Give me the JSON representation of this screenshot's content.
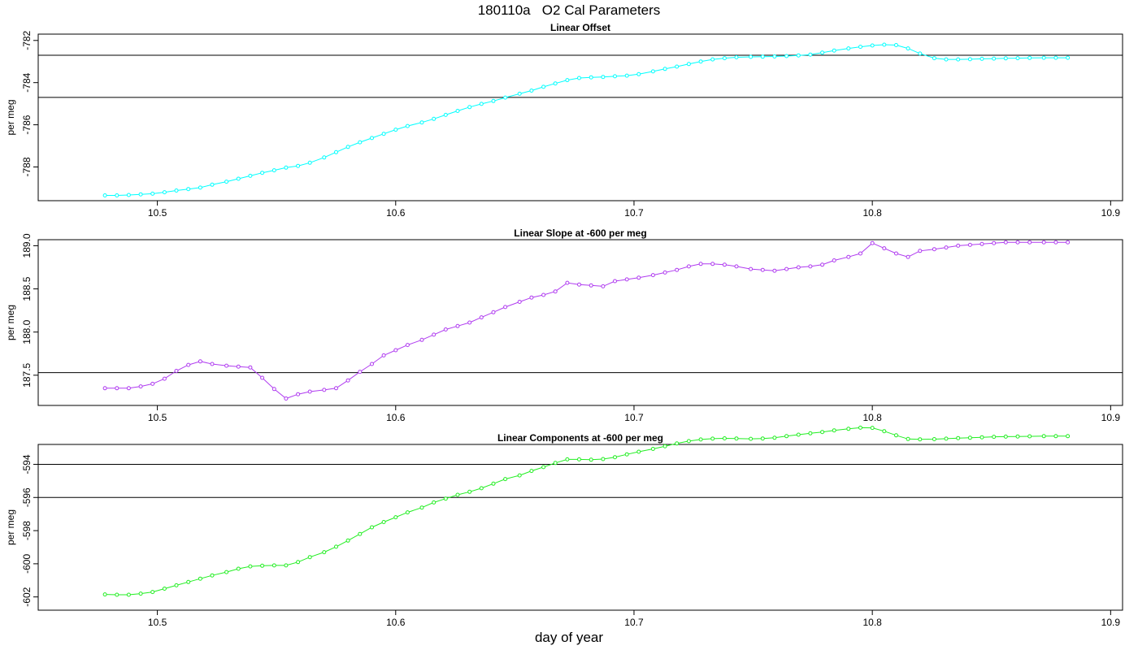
{
  "title": "180110a   O2 Cal Parameters",
  "xlabel": "day of year",
  "chart_data": [
    {
      "type": "line",
      "title": "Linear Offset",
      "ylabel": "per meg",
      "color": "#00ffff",
      "xlim": [
        10.45,
        10.905
      ],
      "ylim": [
        -789.6,
        -781.7
      ],
      "xticks": [
        10.5,
        10.6,
        10.7,
        10.8,
        10.9
      ],
      "yticks": [
        -788,
        -786,
        -784,
        -782
      ],
      "ref_lines": [
        -782.7,
        -784.7
      ],
      "x": [
        10.478,
        10.483,
        10.488,
        10.493,
        10.498,
        10.503,
        10.508,
        10.513,
        10.518,
        10.523,
        10.529,
        10.534,
        10.539,
        10.544,
        10.549,
        10.554,
        10.559,
        10.564,
        10.57,
        10.575,
        10.58,
        10.585,
        10.59,
        10.595,
        10.6,
        10.605,
        10.611,
        10.616,
        10.621,
        10.626,
        10.631,
        10.636,
        10.641,
        10.646,
        10.652,
        10.657,
        10.662,
        10.667,
        10.672,
        10.677,
        10.682,
        10.687,
        10.692,
        10.697,
        10.702,
        10.708,
        10.713,
        10.718,
        10.723,
        10.728,
        10.733,
        10.738,
        10.743,
        10.749,
        10.754,
        10.759,
        10.764,
        10.769,
        10.774,
        10.779,
        10.784,
        10.79,
        10.795,
        10.8,
        10.805,
        10.81,
        10.815,
        10.82,
        10.826,
        10.831,
        10.836,
        10.841,
        10.846,
        10.851,
        10.856,
        10.861,
        10.866,
        10.872,
        10.877,
        10.882
      ],
      "y": [
        -789.35,
        -789.35,
        -789.33,
        -789.3,
        -789.27,
        -789.2,
        -789.12,
        -789.05,
        -788.98,
        -788.84,
        -788.7,
        -788.56,
        -788.42,
        -788.28,
        -788.16,
        -788.03,
        -787.95,
        -787.8,
        -787.55,
        -787.3,
        -787.05,
        -786.83,
        -786.63,
        -786.43,
        -786.23,
        -786.06,
        -785.89,
        -785.72,
        -785.53,
        -785.34,
        -785.16,
        -785.01,
        -784.87,
        -784.71,
        -784.53,
        -784.38,
        -784.2,
        -784.04,
        -783.88,
        -783.78,
        -783.75,
        -783.73,
        -783.7,
        -783.67,
        -783.6,
        -783.47,
        -783.35,
        -783.24,
        -783.12,
        -783.0,
        -782.9,
        -782.84,
        -782.8,
        -782.78,
        -782.77,
        -782.76,
        -782.74,
        -782.71,
        -782.67,
        -782.58,
        -782.48,
        -782.38,
        -782.3,
        -782.24,
        -782.2,
        -782.22,
        -782.38,
        -782.62,
        -782.84,
        -782.9,
        -782.9,
        -782.89,
        -782.87,
        -782.86,
        -782.85,
        -782.84,
        -782.83,
        -782.82,
        -782.82,
        -782.82
      ]
    },
    {
      "type": "line",
      "title": "Linear Slope at -600 per meg",
      "ylabel": "per meg",
      "color": "#b03cf0",
      "xlim": [
        10.45,
        10.905
      ],
      "ylim": [
        187.15,
        189.07
      ],
      "xticks": [
        10.5,
        10.6,
        10.7,
        10.8,
        10.9
      ],
      "yticks": [
        187.5,
        188.0,
        188.5,
        189.0
      ],
      "ref_lines": [
        187.53
      ],
      "x": [
        10.478,
        10.483,
        10.488,
        10.493,
        10.498,
        10.503,
        10.508,
        10.513,
        10.518,
        10.523,
        10.529,
        10.534,
        10.539,
        10.544,
        10.549,
        10.554,
        10.559,
        10.564,
        10.57,
        10.575,
        10.58,
        10.585,
        10.59,
        10.595,
        10.6,
        10.605,
        10.611,
        10.616,
        10.621,
        10.626,
        10.631,
        10.636,
        10.641,
        10.646,
        10.652,
        10.657,
        10.662,
        10.667,
        10.672,
        10.677,
        10.682,
        10.687,
        10.692,
        10.697,
        10.702,
        10.708,
        10.713,
        10.718,
        10.723,
        10.728,
        10.733,
        10.738,
        10.743,
        10.749,
        10.754,
        10.759,
        10.764,
        10.769,
        10.774,
        10.779,
        10.784,
        10.79,
        10.795,
        10.8,
        10.805,
        10.81,
        10.815,
        10.82,
        10.826,
        10.831,
        10.836,
        10.841,
        10.846,
        10.851,
        10.856,
        10.861,
        10.866,
        10.872,
        10.877,
        10.882
      ],
      "y": [
        187.35,
        187.35,
        187.35,
        187.37,
        187.4,
        187.46,
        187.55,
        187.62,
        187.66,
        187.63,
        187.61,
        187.6,
        187.59,
        187.47,
        187.34,
        187.23,
        187.28,
        187.31,
        187.33,
        187.35,
        187.44,
        187.54,
        187.63,
        187.73,
        187.79,
        187.85,
        187.91,
        187.97,
        188.03,
        188.07,
        188.11,
        188.17,
        188.23,
        188.29,
        188.35,
        188.4,
        188.43,
        188.47,
        188.57,
        188.55,
        188.54,
        188.53,
        188.59,
        188.61,
        188.63,
        188.66,
        188.69,
        188.72,
        188.76,
        188.79,
        188.79,
        188.78,
        188.76,
        188.73,
        188.72,
        188.71,
        188.73,
        188.75,
        188.76,
        188.78,
        188.83,
        188.87,
        188.91,
        189.03,
        188.97,
        188.91,
        188.87,
        188.94,
        188.96,
        188.98,
        189.0,
        189.01,
        189.02,
        189.03,
        189.04,
        189.04,
        189.04,
        189.04,
        189.04,
        189.04
      ]
    },
    {
      "type": "line",
      "title": "Linear Components at -600 per meg",
      "ylabel": "per meg",
      "color": "#22ee22",
      "xlim": [
        10.45,
        10.905
      ],
      "ylim": [
        -602.8,
        -592.8
      ],
      "xticks": [
        10.5,
        10.6,
        10.7,
        10.8,
        10.9
      ],
      "yticks": [
        -602,
        -600,
        -598,
        -596,
        -594
      ],
      "ref_lines": [
        -594.0,
        -596.0
      ],
      "x": [
        10.478,
        10.483,
        10.488,
        10.493,
        10.498,
        10.503,
        10.508,
        10.513,
        10.518,
        10.523,
        10.529,
        10.534,
        10.539,
        10.544,
        10.549,
        10.554,
        10.559,
        10.564,
        10.57,
        10.575,
        10.58,
        10.585,
        10.59,
        10.595,
        10.6,
        10.605,
        10.611,
        10.616,
        10.621,
        10.626,
        10.631,
        10.636,
        10.641,
        10.646,
        10.652,
        10.657,
        10.662,
        10.667,
        10.672,
        10.677,
        10.682,
        10.687,
        10.692,
        10.697,
        10.702,
        10.708,
        10.713,
        10.718,
        10.723,
        10.728,
        10.733,
        10.738,
        10.743,
        10.749,
        10.754,
        10.759,
        10.764,
        10.769,
        10.774,
        10.779,
        10.784,
        10.79,
        10.795,
        10.8,
        10.805,
        10.81,
        10.815,
        10.82,
        10.826,
        10.831,
        10.836,
        10.841,
        10.846,
        10.851,
        10.856,
        10.861,
        10.866,
        10.872,
        10.877,
        10.882
      ],
      "y": [
        -601.85,
        -601.87,
        -601.87,
        -601.8,
        -601.7,
        -601.5,
        -601.3,
        -601.1,
        -600.9,
        -600.7,
        -600.5,
        -600.3,
        -600.16,
        -600.12,
        -600.1,
        -600.1,
        -599.9,
        -599.6,
        -599.3,
        -598.97,
        -598.6,
        -598.2,
        -597.8,
        -597.48,
        -597.19,
        -596.9,
        -596.61,
        -596.3,
        -596.07,
        -595.84,
        -595.66,
        -595.44,
        -595.17,
        -594.89,
        -594.67,
        -594.4,
        -594.17,
        -593.92,
        -593.7,
        -593.7,
        -593.72,
        -593.68,
        -593.57,
        -593.4,
        -593.24,
        -593.07,
        -592.91,
        -592.74,
        -592.6,
        -592.5,
        -592.45,
        -592.43,
        -592.44,
        -592.46,
        -592.44,
        -592.4,
        -592.3,
        -592.21,
        -592.13,
        -592.05,
        -591.95,
        -591.86,
        -591.79,
        -591.8,
        -592.0,
        -592.25,
        -592.47,
        -592.49,
        -592.48,
        -592.45,
        -592.42,
        -592.4,
        -592.37,
        -592.34,
        -592.33,
        -592.32,
        -592.31,
        -592.3,
        -592.3,
        -592.3
      ]
    }
  ]
}
